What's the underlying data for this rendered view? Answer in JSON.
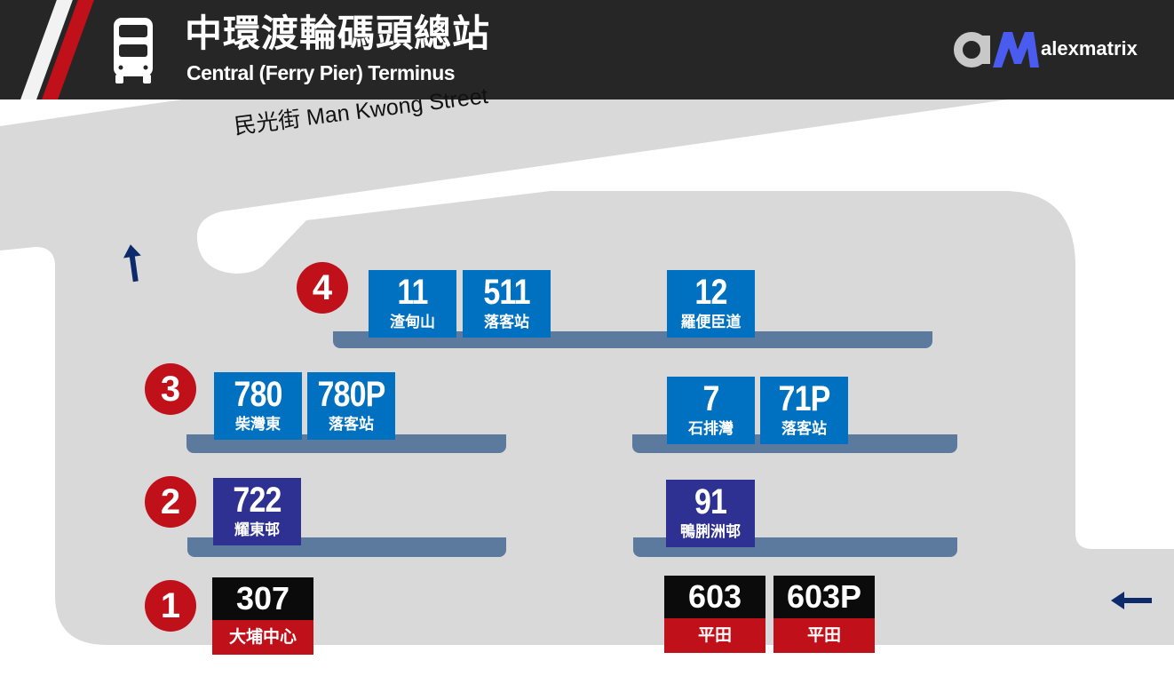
{
  "header": {
    "title_zh": "中環渡輪碼頭總站",
    "title_en": "Central (Ferry Pier) Terminus",
    "icon": "double-decker-bus-icon",
    "logo": {
      "mark": "aM",
      "text": "alexmatrix"
    }
  },
  "map": {
    "street_label": "民光街 Man Kwong Street",
    "colors": {
      "road": "#d9d9d9",
      "platform": "#5b7a9e",
      "bay": "#c0101a",
      "blue": "#0070c0",
      "purple": "#2e3192",
      "black": "#0b0b0b",
      "red": "#c0101a",
      "arrow": "#0d2a6b"
    },
    "arrows": [
      "arrow-up-icon",
      "arrow-left-icon"
    ]
  },
  "bays": [
    {
      "number": "4",
      "routes": [
        {
          "num": "11",
          "dest": "渣甸山",
          "color": "blue"
        },
        {
          "num": "511",
          "dest": "落客站",
          "color": "blue"
        },
        {
          "num": "12",
          "dest": "羅便臣道",
          "color": "blue"
        }
      ]
    },
    {
      "number": "3",
      "routes": [
        {
          "num": "780",
          "dest": "柴灣東",
          "color": "blue"
        },
        {
          "num": "780P",
          "dest": "落客站",
          "color": "blue"
        },
        {
          "num": "7",
          "dest": "石排灣",
          "color": "blue"
        },
        {
          "num": "71P",
          "dest": "落客站",
          "color": "blue"
        }
      ]
    },
    {
      "number": "2",
      "routes": [
        {
          "num": "722",
          "dest": "耀東邨",
          "color": "purple"
        },
        {
          "num": "91",
          "dest": "鴨脷洲邨",
          "color": "purple"
        }
      ]
    },
    {
      "number": "1",
      "routes": [
        {
          "num": "307",
          "dest": "大埔中心",
          "color": "black-red"
        },
        {
          "num": "603",
          "dest": "平田",
          "color": "black-red"
        },
        {
          "num": "603P",
          "dest": "平田",
          "color": "black-red"
        }
      ]
    }
  ]
}
